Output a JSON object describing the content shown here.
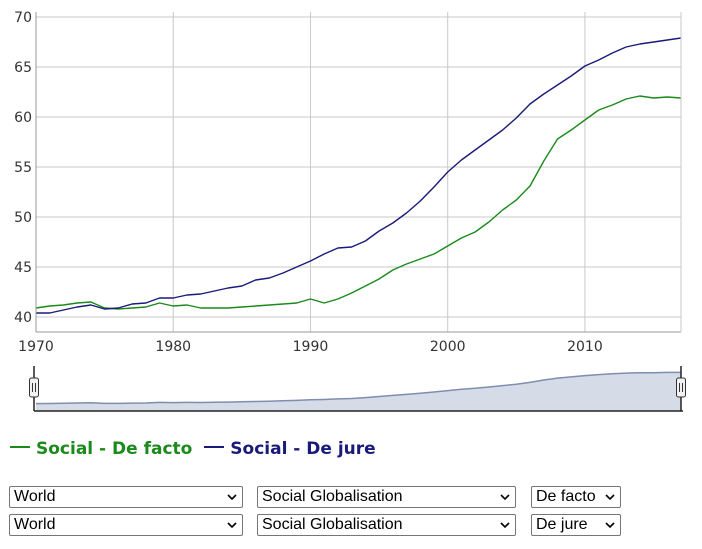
{
  "chart_data": {
    "type": "line",
    "xlim": [
      1970,
      2017
    ],
    "ylim": [
      38.5,
      70.5
    ],
    "x_ticks": [
      1970,
      1980,
      1990,
      2000,
      2010
    ],
    "y_ticks": [
      40,
      45,
      50,
      55,
      60,
      65,
      70
    ],
    "grid": true,
    "legend_placement": "bottom",
    "x": [
      1970,
      1971,
      1972,
      1973,
      1974,
      1975,
      1976,
      1977,
      1978,
      1979,
      1980,
      1981,
      1982,
      1983,
      1984,
      1985,
      1986,
      1987,
      1988,
      1989,
      1990,
      1991,
      1992,
      1993,
      1994,
      1995,
      1996,
      1997,
      1998,
      1999,
      2000,
      2001,
      2002,
      2003,
      2004,
      2005,
      2006,
      2007,
      2008,
      2009,
      2010,
      2011,
      2012,
      2013,
      2014,
      2015,
      2016,
      2017
    ],
    "series": [
      {
        "name": "Social - De facto",
        "color": "#1a8a1a",
        "values": [
          40.9,
          41.1,
          41.2,
          41.4,
          41.5,
          40.9,
          40.8,
          40.9,
          41.0,
          41.4,
          41.1,
          41.2,
          40.9,
          40.9,
          40.9,
          41.0,
          41.1,
          41.2,
          41.3,
          41.4,
          41.8,
          41.4,
          41.8,
          42.4,
          43.1,
          43.8,
          44.7,
          45.3,
          45.8,
          46.3,
          47.1,
          47.9,
          48.5,
          49.5,
          50.7,
          51.7,
          53.1,
          55.6,
          57.8,
          58.7,
          59.7,
          60.7,
          61.2,
          61.8,
          62.1,
          61.9,
          62.0,
          61.9
        ]
      },
      {
        "name": "Social - De jure",
        "color": "#1a1a7a",
        "values": [
          40.4,
          40.4,
          40.7,
          41.0,
          41.2,
          40.8,
          40.9,
          41.3,
          41.4,
          41.9,
          41.9,
          42.2,
          42.3,
          42.6,
          42.9,
          43.1,
          43.7,
          43.9,
          44.4,
          45.0,
          45.6,
          46.3,
          46.9,
          47.0,
          47.6,
          48.6,
          49.4,
          50.4,
          51.6,
          53.0,
          54.5,
          55.7,
          56.7,
          57.7,
          58.7,
          59.9,
          61.3,
          62.3,
          63.2,
          64.1,
          65.1,
          65.7,
          66.4,
          67.0,
          67.3,
          67.5,
          67.7,
          67.9
        ]
      }
    ],
    "navigator": {
      "values": [
        40.7,
        40.8,
        41.0,
        41.2,
        41.4,
        40.9,
        40.9,
        41.1,
        41.2,
        41.7,
        41.5,
        41.7,
        41.6,
        41.8,
        41.9,
        42.1,
        42.4,
        42.6,
        42.9,
        43.2,
        43.7,
        43.9,
        44.4,
        44.7,
        45.4,
        46.2,
        47.1,
        47.9,
        48.7,
        49.7,
        50.8,
        51.8,
        52.6,
        53.6,
        54.7,
        55.8,
        57.2,
        59.0,
        60.5,
        61.4,
        62.4,
        63.2,
        63.8,
        64.4,
        64.7,
        64.7,
        64.9,
        64.9
      ]
    }
  },
  "controls": {
    "row1": {
      "country": "World",
      "indicator": "Social Globalisation",
      "type": "De facto"
    },
    "row2": {
      "country": "World",
      "indicator": "Social Globalisation",
      "type": "De jure"
    }
  }
}
